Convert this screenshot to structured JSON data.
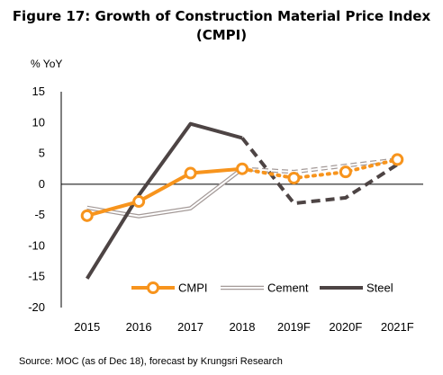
{
  "title_line1": "Figure 17: Growth of Construction Material Price Index",
  "title_line2": "(CMPI)",
  "source": "Source: MOC (as of Dec 18), forecast by Krungsri Research",
  "chart_data": {
    "type": "line",
    "ylabel": "% YoY",
    "xlabel": "",
    "categories": [
      "2015",
      "2016",
      "2017",
      "2018",
      "2019F",
      "2020F",
      "2021F"
    ],
    "forecast_start_index": 4,
    "ylim": [
      -20,
      15
    ],
    "yticks": [
      15,
      10,
      5,
      0,
      -5,
      -10,
      -15,
      -20
    ],
    "grid": false,
    "legend_position": "bottom-inside",
    "series": [
      {
        "name": "CMPI",
        "values": [
          -5.1,
          -2.8,
          1.8,
          2.5,
          1.0,
          2.0,
          4.0
        ],
        "color": "#F7941D",
        "style": "solid-with-markers"
      },
      {
        "name": "Cement",
        "values": [
          -3.8,
          -5.2,
          -3.9,
          2.5,
          2.0,
          3.0,
          4.0
        ],
        "color": "#A49A98",
        "style": "double-line"
      },
      {
        "name": "Steel",
        "values": [
          -15.3,
          -1.8,
          9.8,
          7.5,
          -3.1,
          -2.2,
          3.2
        ],
        "color": "#4D4444",
        "style": "solid"
      }
    ]
  }
}
